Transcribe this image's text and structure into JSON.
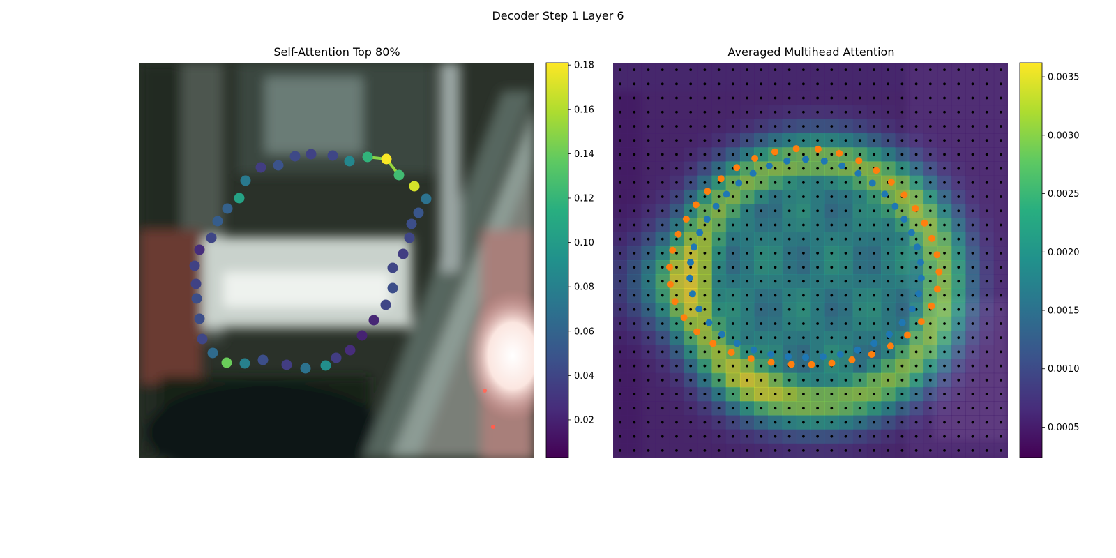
{
  "figure": {
    "suptitle": "Decoder Step 1 Layer 6"
  },
  "chart_data": [
    {
      "type": "scatter",
      "title": "Self-Attention Top 80%",
      "description_role": "attention weights of points on a closed contour over a blurred photo background",
      "colormap": "viridis",
      "colorbar": {
        "min": 0.003,
        "max": 0.181,
        "ticks": [
          "0.02",
          "0.04",
          "0.06",
          "0.08",
          "0.10",
          "0.12",
          "0.14",
          "0.16",
          "0.18"
        ],
        "tick_values": [
          0.02,
          0.04,
          0.06,
          0.08,
          0.1,
          0.12,
          0.14,
          0.16,
          0.18
        ]
      },
      "axis": "off",
      "points": [
        {
          "x": 554,
          "y": 228,
          "v": 0.18
        },
        {
          "x": 594,
          "y": 267,
          "v": 0.17
        },
        {
          "x": 572,
          "y": 251,
          "v": 0.125
        },
        {
          "x": 527,
          "y": 225,
          "v": 0.118
        },
        {
          "x": 501,
          "y": 231,
          "v": 0.085
        },
        {
          "x": 477,
          "y": 223,
          "v": 0.04
        },
        {
          "x": 446,
          "y": 221,
          "v": 0.038
        },
        {
          "x": 423,
          "y": 224,
          "v": 0.042
        },
        {
          "x": 399,
          "y": 237,
          "v": 0.048
        },
        {
          "x": 374,
          "y": 240,
          "v": 0.035
        },
        {
          "x": 352,
          "y": 259,
          "v": 0.075
        },
        {
          "x": 343,
          "y": 284,
          "v": 0.105
        },
        {
          "x": 326,
          "y": 299,
          "v": 0.058
        },
        {
          "x": 312,
          "y": 317,
          "v": 0.055
        },
        {
          "x": 303,
          "y": 341,
          "v": 0.04
        },
        {
          "x": 286,
          "y": 358,
          "v": 0.025
        },
        {
          "x": 279,
          "y": 381,
          "v": 0.038
        },
        {
          "x": 281,
          "y": 407,
          "v": 0.038
        },
        {
          "x": 282,
          "y": 428,
          "v": 0.045
        },
        {
          "x": 286,
          "y": 457,
          "v": 0.045
        },
        {
          "x": 290,
          "y": 486,
          "v": 0.04
        },
        {
          "x": 305,
          "y": 506,
          "v": 0.065
        },
        {
          "x": 325,
          "y": 520,
          "v": 0.14
        },
        {
          "x": 351,
          "y": 521,
          "v": 0.08
        },
        {
          "x": 377,
          "y": 516,
          "v": 0.045
        },
        {
          "x": 411,
          "y": 523,
          "v": 0.035
        },
        {
          "x": 438,
          "y": 528,
          "v": 0.07
        },
        {
          "x": 467,
          "y": 524,
          "v": 0.09
        },
        {
          "x": 482,
          "y": 513,
          "v": 0.035
        },
        {
          "x": 502,
          "y": 502,
          "v": 0.025
        },
        {
          "x": 519,
          "y": 481,
          "v": 0.02
        },
        {
          "x": 536,
          "y": 459,
          "v": 0.022
        },
        {
          "x": 553,
          "y": 437,
          "v": 0.04
        },
        {
          "x": 563,
          "y": 413,
          "v": 0.045
        },
        {
          "x": 563,
          "y": 384,
          "v": 0.04
        },
        {
          "x": 578,
          "y": 364,
          "v": 0.035
        },
        {
          "x": 587,
          "y": 341,
          "v": 0.04
        },
        {
          "x": 590,
          "y": 321,
          "v": 0.045
        },
        {
          "x": 600,
          "y": 305,
          "v": 0.05
        },
        {
          "x": 611,
          "y": 285,
          "v": 0.07
        }
      ],
      "edges_highlighted": [
        [
          0,
          2
        ],
        [
          0,
          3
        ]
      ]
    },
    {
      "type": "heatmap",
      "title": "Averaged Multihead Attention",
      "colormap": "viridis",
      "colorbar": {
        "min": 0.00024,
        "max": 0.00362,
        "ticks": [
          "0.0005",
          "0.0010",
          "0.0015",
          "0.0020",
          "0.0025",
          "0.0030",
          "0.0035"
        ],
        "tick_values": [
          0.0005,
          0.001,
          0.0015,
          0.002,
          0.0025,
          0.003,
          0.0035
        ]
      },
      "axis": "off",
      "grid_points": "28x28 black reference dots",
      "series": [
        {
          "color": "#1f77b4"
        },
        {
          "color": "#ff7f0e"
        }
      ]
    }
  ]
}
